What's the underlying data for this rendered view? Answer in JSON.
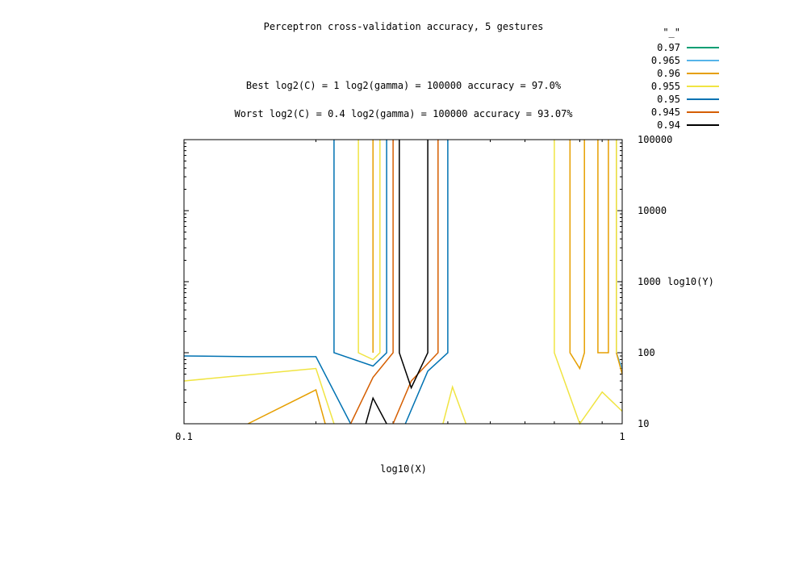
{
  "chart_data": {
    "type": "contour",
    "title": "Perceptron cross-validation accuracy, 5 gestures",
    "annotations": [
      "Best log2(C) = 1  log2(gamma) = 100000  accuracy = 97.0%",
      "Worst log2(C) = 0.4  log2(gamma) = 100000   accuracy = 93.07%"
    ],
    "xlabel": "log10(X)",
    "ylabel": "log10(Y)",
    "xscale": "log",
    "yscale": "log",
    "xlim": [
      0.1,
      1
    ],
    "ylim": [
      10,
      100000
    ],
    "x_ticks": [
      "0.1",
      "1"
    ],
    "y_ticks": [
      "10",
      "100",
      "1000",
      "10000",
      "100000"
    ],
    "legend": {
      "title": "\"_\"",
      "placement": "outside-top-right",
      "entries": [
        {
          "label": "0.97",
          "color": "#009e73"
        },
        {
          "label": "0.965",
          "color": "#56b4e9"
        },
        {
          "label": "0.96",
          "color": "#e69f00"
        },
        {
          "label": "0.955",
          "color": "#f0e442"
        },
        {
          "label": "0.95",
          "color": "#0072b2"
        },
        {
          "label": "0.945",
          "color": "#d55e00"
        },
        {
          "label": "0.94",
          "color": "#000000"
        }
      ]
    },
    "contours": [
      {
        "level": "0.965",
        "color": "#56b4e9",
        "paths": [
          [
            [
              0.97,
              100000
            ],
            [
              0.97,
              100
            ],
            [
              1.0,
              60
            ]
          ]
        ]
      },
      {
        "level": "0.96",
        "color": "#e69f00",
        "paths": [
          [
            [
              0.27,
              100000
            ],
            [
              0.27,
              100
            ]
          ],
          [
            [
              0.14,
              10
            ],
            [
              0.2,
              30
            ],
            [
              0.21,
              10
            ]
          ],
          [
            [
              0.76,
              100000
            ],
            [
              0.76,
              100
            ],
            [
              0.8,
              60
            ],
            [
              0.82,
              100
            ],
            [
              0.82,
              100000
            ]
          ],
          [
            [
              0.88,
              100000
            ],
            [
              0.88,
              100
            ],
            [
              0.93,
              100
            ],
            [
              0.93,
              100000
            ]
          ],
          [
            [
              0.97,
              100000
            ],
            [
              0.97,
              100
            ],
            [
              1.0,
              50
            ]
          ]
        ]
      },
      {
        "level": "0.955",
        "color": "#f0e442",
        "paths": [
          [
            [
              0.25,
              100000
            ],
            [
              0.25,
              100
            ],
            [
              0.27,
              80
            ],
            [
              0.28,
              100
            ],
            [
              0.28,
              100000
            ]
          ],
          [
            [
              0.1,
              40
            ],
            [
              0.2,
              60
            ],
            [
              0.22,
              10
            ]
          ],
          [
            [
              0.39,
              10
            ],
            [
              0.41,
              33
            ],
            [
              0.44,
              10
            ]
          ],
          [
            [
              0.7,
              100000
            ],
            [
              0.7,
              100
            ],
            [
              0.8,
              10
            ],
            [
              0.9,
              28
            ],
            [
              1.0,
              15
            ]
          ],
          [
            [
              0.97,
              100000
            ],
            [
              0.97,
              100
            ]
          ]
        ]
      },
      {
        "level": "0.95",
        "color": "#0072b2",
        "paths": [
          [
            [
              0.1,
              90
            ],
            [
              0.14,
              88
            ],
            [
              0.2,
              88
            ],
            [
              0.24,
              10
            ]
          ],
          [
            [
              0.22,
              100000
            ],
            [
              0.22,
              100
            ],
            [
              0.27,
              65
            ],
            [
              0.29,
              100
            ],
            [
              0.29,
              100000
            ]
          ],
          [
            [
              0.4,
              100000
            ],
            [
              0.4,
              100
            ],
            [
              0.36,
              55
            ],
            [
              0.32,
              10
            ]
          ]
        ]
      },
      {
        "level": "0.945",
        "color": "#d55e00",
        "paths": [
          [
            [
              0.3,
              100000
            ],
            [
              0.3,
              100
            ],
            [
              0.27,
              45
            ],
            [
              0.24,
              10
            ]
          ],
          [
            [
              0.38,
              100000
            ],
            [
              0.38,
              100
            ],
            [
              0.33,
              40
            ],
            [
              0.3,
              10
            ]
          ]
        ]
      },
      {
        "level": "0.94",
        "color": "#000000",
        "paths": [
          [
            [
              0.31,
              100000
            ],
            [
              0.31,
              100
            ],
            [
              0.33,
              32
            ],
            [
              0.36,
              100
            ],
            [
              0.36,
              100000
            ]
          ],
          [
            [
              0.26,
              10
            ],
            [
              0.27,
              23
            ],
            [
              0.29,
              10
            ]
          ]
        ]
      }
    ]
  }
}
